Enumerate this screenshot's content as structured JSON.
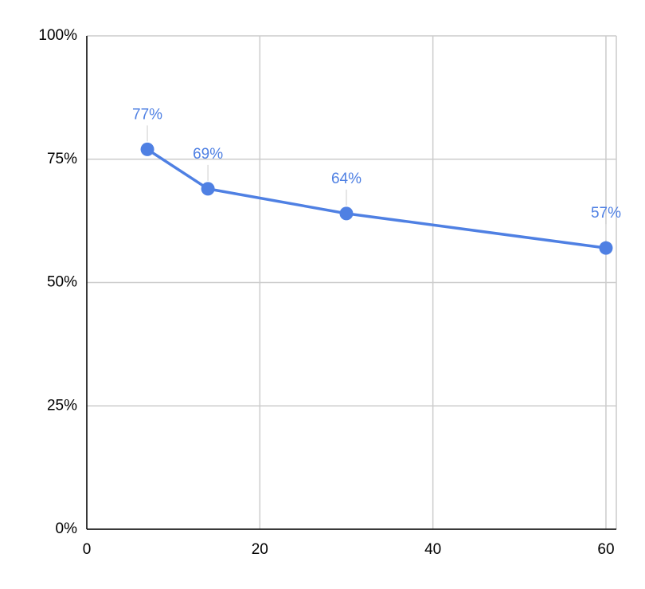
{
  "chart_data": {
    "type": "line",
    "x": [
      7,
      14,
      30,
      60
    ],
    "values": [
      77,
      69,
      64,
      57
    ],
    "value_labels": [
      "77%",
      "69%",
      "64%",
      "57%"
    ],
    "color": "#4f80e3",
    "xlim": [
      0,
      61.2
    ],
    "xticks": [
      0,
      20,
      40,
      60
    ],
    "ylim": [
      0,
      100
    ],
    "yticks": [
      {
        "value": 0,
        "label": "0%"
      },
      {
        "value": 25,
        "label": "25%"
      },
      {
        "value": 50,
        "label": "50%"
      },
      {
        "value": 75,
        "label": "75%"
      },
      {
        "value": 100,
        "label": "100%"
      }
    ],
    "grid": true
  }
}
